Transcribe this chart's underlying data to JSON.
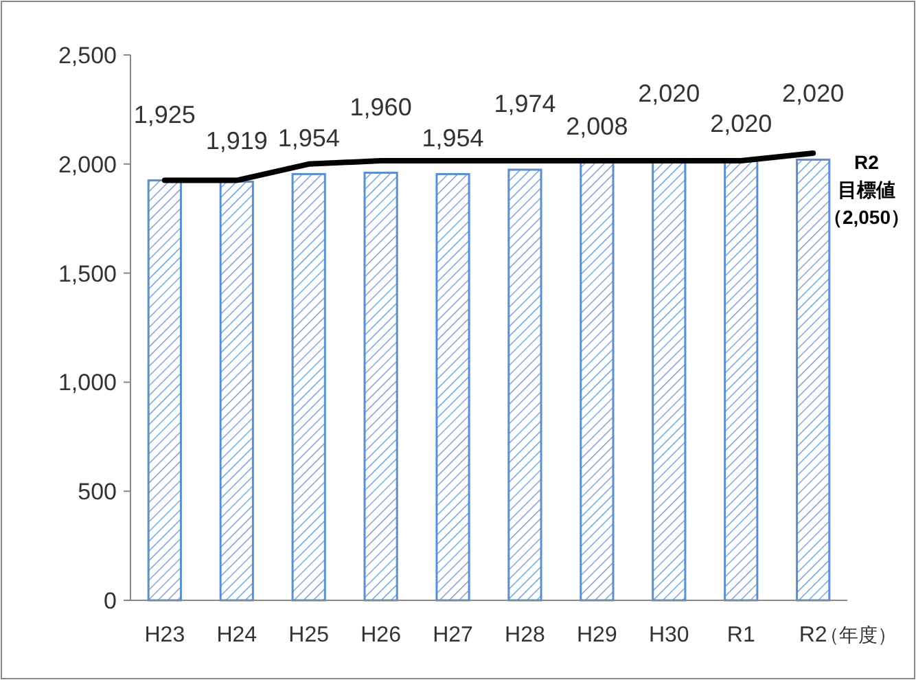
{
  "chart_data": {
    "type": "bar",
    "categories": [
      "H23",
      "H24",
      "H25",
      "H26",
      "H27",
      "H28",
      "H29",
      "H30",
      "R1",
      "R2"
    ],
    "xlabel": "（年度）",
    "series": [
      {
        "color": "#5b8fcf",
        "values": [
          1925,
          1919,
          1954,
          1960,
          1954,
          1974,
          2008,
          2020,
          2020,
          2020
        ],
        "value_labels": [
          "1,925",
          "1,919",
          "1,954",
          "1,960",
          "1,954",
          "1,974",
          "2,008",
          "2,020",
          "2,020",
          "2,020"
        ]
      },
      {
        "type": "line",
        "color": "#000000",
        "values": [
          1925,
          1925,
          2000,
          2015,
          2015,
          2015,
          2015,
          2015,
          2015,
          2050
        ]
      }
    ],
    "ylim": [
      0,
      2500
    ],
    "yticks": [
      {
        "value": 0,
        "label": "0"
      },
      {
        "value": 500,
        "label": "500"
      },
      {
        "value": 1000,
        "label": "1,000"
      },
      {
        "value": 1500,
        "label": "1,500"
      },
      {
        "value": 2000,
        "label": "2,000"
      },
      {
        "value": 2500,
        "label": "2,500"
      }
    ],
    "grid": false,
    "marker": "none",
    "line_style": "solid",
    "annotations": [
      "R2",
      "目標値",
      "（2,050）"
    ]
  }
}
